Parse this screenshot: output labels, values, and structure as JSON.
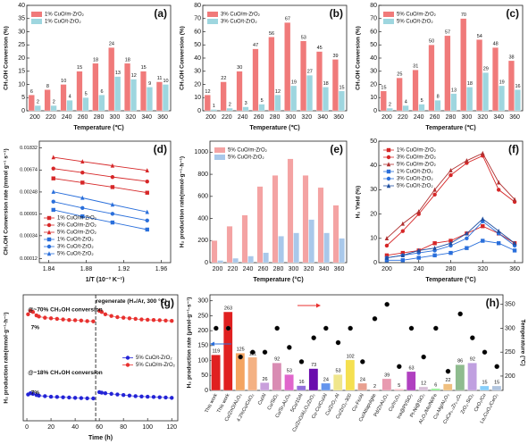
{
  "chart_data": [
    {
      "type": "bar",
      "panel": "(a)",
      "xlabel": "Temperature (℃)",
      "ylabel": "CH₃OH Conversion (%)",
      "categories": [
        200,
        220,
        240,
        260,
        280,
        300,
        320,
        340,
        360
      ],
      "ylim": [
        0,
        40
      ],
      "yticks": [
        0,
        5,
        10,
        15,
        20,
        25,
        30,
        35,
        40
      ],
      "legend": "upper left",
      "data_labels": true,
      "series": [
        {
          "name": "1% CuO/m-ZrO₂",
          "color": "#f07a7a",
          "values": [
            6,
            8,
            10,
            15,
            18,
            24,
            18,
            15,
            11
          ]
        },
        {
          "name": "1% CuO/t-ZrO₂",
          "color": "#9ed6df",
          "values": [
            2,
            2,
            4,
            5,
            6,
            13,
            12,
            9,
            10
          ]
        }
      ]
    },
    {
      "type": "bar",
      "panel": "(b)",
      "xlabel": "Temperature (℃)",
      "ylabel": "CH₃OH Conversion (%)",
      "categories": [
        200,
        220,
        240,
        260,
        280,
        300,
        320,
        340,
        360
      ],
      "ylim": [
        0,
        80
      ],
      "yticks": [
        0,
        10,
        20,
        30,
        40,
        50,
        60,
        70,
        80
      ],
      "legend": "upper left",
      "data_labels": true,
      "series": [
        {
          "name": "3% CuO/m-ZrO₂",
          "color": "#f07a7a",
          "values": [
            12,
            22,
            30,
            47,
            56,
            67,
            53,
            45,
            39
          ]
        },
        {
          "name": "3% CuO/t-ZrO₂",
          "color": "#9ed6df",
          "values": [
            1,
            2,
            3,
            5,
            12,
            19,
            27,
            18,
            15
          ]
        }
      ]
    },
    {
      "type": "bar",
      "panel": "(c)",
      "xlabel": "Temperature (℃)",
      "ylabel": "CH₃OH Conversion (%)",
      "categories": [
        200,
        220,
        240,
        260,
        280,
        300,
        320,
        340,
        360
      ],
      "ylim": [
        0,
        80
      ],
      "yticks": [
        0,
        10,
        20,
        30,
        40,
        50,
        60,
        70,
        80
      ],
      "legend": "upper left",
      "data_labels": true,
      "series": [
        {
          "name": "5% CuO/m-ZrO₂",
          "color": "#f07a7a",
          "values": [
            15,
            25,
            31,
            50,
            57,
            70,
            54,
            48,
            38
          ]
        },
        {
          "name": "5% CuO/t-ZrO₂",
          "color": "#9ed6df",
          "values": [
            2,
            4,
            5,
            8,
            13,
            18,
            29,
            19,
            16
          ]
        }
      ]
    },
    {
      "type": "line",
      "panel": "(d)",
      "xlabel": "1/T (10⁻³ K⁻¹)",
      "ylabel": "CH₃OH Conversion rate (mmol g⁻¹ s⁻¹)",
      "log_y": true,
      "ylim": [
        0.0001,
        0.025
      ],
      "yticks": [
        0.00012,
        0.00034,
        0.00091,
        0.00248,
        0.00674,
        0.01832
      ],
      "xlim": [
        1.83,
        1.97
      ],
      "xticks": [
        1.84,
        1.88,
        1.92,
        1.96
      ],
      "x": [
        1.845,
        1.876,
        1.908,
        1.945
      ],
      "legend": "lower left",
      "series": [
        {
          "name": "1% CuO/m-ZrO₂",
          "color": "#d62728",
          "marker": "square",
          "values": [
            0.0046,
            0.0038,
            0.0031,
            0.0024
          ]
        },
        {
          "name": "3% CuO/m-ZrO₂",
          "color": "#d62728",
          "marker": "circle",
          "values": [
            0.0072,
            0.006,
            0.0049,
            0.004
          ]
        },
        {
          "name": "5% CuO/m-ZrO₂",
          "color": "#d62728",
          "marker": "triangle",
          "values": [
            0.012,
            0.0099,
            0.0082,
            0.0066
          ]
        },
        {
          "name": "1% CuO/t-ZrO₂",
          "color": "#2a6fdb",
          "marker": "square",
          "values": [
            0.0011,
            0.00082,
            0.00062,
            0.00045
          ]
        },
        {
          "name": "3% CuO/t-ZrO₂",
          "color": "#2a6fdb",
          "marker": "circle",
          "values": [
            0.0016,
            0.0012,
            0.00092,
            0.00068
          ]
        },
        {
          "name": "5% CuO/t-ZrO₂",
          "color": "#2a6fdb",
          "marker": "triangle",
          "values": [
            0.0025,
            0.0019,
            0.0014,
            0.001
          ]
        }
      ]
    },
    {
      "type": "bar",
      "panel": "(e)",
      "xlabel": "Temperature (°C)",
      "ylabel": "H₂ production rate(mmol·g⁻¹·h⁻¹)",
      "categories": [
        200,
        220,
        240,
        260,
        280,
        300,
        320,
        340,
        360
      ],
      "ylim": [
        0,
        1100
      ],
      "yticks": [
        0,
        200,
        400,
        600,
        800,
        1000
      ],
      "legend": "upper left",
      "series": [
        {
          "name": "5% CuO/m-ZrO₂",
          "color": "#f4a3a3",
          "values": [
            200,
            330,
            430,
            690,
            790,
            940,
            790,
            680,
            520
          ]
        },
        {
          "name": "5% CuO/t-ZrO₂",
          "color": "#a9c8ea",
          "values": [
            20,
            40,
            60,
            90,
            240,
            270,
            390,
            270,
            220
          ]
        }
      ]
    },
    {
      "type": "line",
      "panel": "(f)",
      "xlabel": "Temperature (°C)",
      "ylabel": "H₂ Yield (%)",
      "xlim": [
        190,
        370
      ],
      "xticks": [
        200,
        240,
        280,
        320,
        360
      ],
      "ylim": [
        0,
        50
      ],
      "yticks": [
        0,
        10,
        20,
        30,
        40,
        50
      ],
      "x": [
        200,
        220,
        240,
        260,
        280,
        300,
        320,
        340,
        360
      ],
      "legend": "upper left",
      "series": [
        {
          "name": "1% CuO/m-ZrO₂",
          "color": "#d62728",
          "marker": "square",
          "values": [
            3,
            4,
            5,
            8,
            9,
            12,
            15,
            12,
            8
          ]
        },
        {
          "name": "3% CuO/m-ZrO₂",
          "color": "#d62728",
          "marker": "circle",
          "values": [
            7,
            13,
            20,
            28,
            36,
            41,
            44,
            30,
            25
          ]
        },
        {
          "name": "5% CuO/m-ZrO₂",
          "color": "#b03030",
          "marker": "triangle",
          "values": [
            10,
            16,
            21,
            30,
            38,
            42,
            45,
            33,
            26
          ]
        },
        {
          "name": "1% CuO/t-ZrO₂",
          "color": "#2a6fdb",
          "marker": "square",
          "values": [
            1,
            1,
            2,
            3,
            4,
            6,
            9,
            8,
            5
          ]
        },
        {
          "name": "3% CuO/t-ZrO₂",
          "color": "#2a6fdb",
          "marker": "circle",
          "values": [
            2,
            3,
            4,
            5,
            7,
            10,
            17,
            12,
            7
          ]
        },
        {
          "name": "5% CuO/t-ZrO₂",
          "color": "#1f4fa0",
          "marker": "triangle",
          "values": [
            2,
            3,
            5,
            6,
            8,
            12,
            18,
            13,
            8
          ]
        }
      ]
    },
    {
      "type": "line",
      "panel": "(g)",
      "xlabel": "Time (h)",
      "ylabel": "H₂ production rate(mmol·g⁻¹·h⁻¹)",
      "xlim": [
        -3,
        125
      ],
      "xticks": [
        0,
        20,
        40,
        60,
        80,
        100,
        120
      ],
      "ylim": [
        0,
        1100
      ],
      "legend": "center right",
      "vlines": [
        57
      ],
      "annotations": [
        "@~70% CH₃OH conversion",
        "@~18% CH₃OH conversion",
        "regenerate (H₂/Ar, 300 °C)",
        "7%",
        "7%"
      ],
      "x": [
        1,
        3,
        5,
        8,
        10,
        15,
        20,
        25,
        30,
        35,
        40,
        45,
        50,
        55,
        58,
        60,
        62,
        65,
        70,
        75,
        80,
        85,
        90,
        95,
        100,
        105,
        110,
        115,
        120
      ],
      "series": [
        {
          "name": "5% CuO/t-ZrO₂",
          "color": "#2323d6",
          "marker": "circle",
          "values": [
            230,
            240,
            235,
            225,
            220,
            215,
            210,
            208,
            205,
            203,
            200,
            198,
            196,
            195,
            null,
            250,
            245,
            240,
            235,
            230,
            225,
            220,
            215,
            212,
            210,
            208,
            205,
            203,
            200
          ]
        },
        {
          "name": "5% CuO/m-ZrO₂",
          "color": "#e8312f",
          "marker": "circle",
          "values": [
            930,
            960,
            950,
            920,
            910,
            900,
            895,
            890,
            885,
            880,
            878,
            875,
            870,
            868,
            null,
            960,
            950,
            930,
            915,
            905,
            900,
            895,
            890,
            885,
            882,
            880,
            878,
            875,
            872
          ]
        }
      ]
    },
    {
      "type": "bar",
      "panel": "(h)",
      "ylabel": "H₂ production rate (μmol·g⁻¹·s⁻¹)",
      "y2label": "Temperature (°C)",
      "categories": [
        "This work",
        "This work",
        "Cu/ZnO/Al₂O₃",
        "4.2%Cu/CeO₂",
        "Cu/Al",
        "Cu/SiO₂",
        "Cu/Sr₃Al₂O₆",
        "5Cu/10Al",
        "Cu/ZnO/Al₂O₃/ZrO₂",
        "Cu-Co/Cu/Al",
        "Cu/ZrO₂-Al",
        "Cu/ZrO₂-300",
        "Cu-Fe/Al",
        "Cu/Attapulgite",
        "Pd/ZnAl₂O₄",
        "Cu/In₂O₃",
        "Ina@Pt/SiO₂",
        "Pt-Ni@SiO₂",
        "Al₂O₃/Mo/Ni/Fe",
        "Cu-Mg/Al₂O₃",
        "CuCe₀.₂Zr₀.₈Oₓ",
        "ZrO₂-SiO₂",
        "CeO₂/Cu",
        "La₂CuO₄/CeO₂"
      ],
      "ylim": [
        0,
        320
      ],
      "yticks": [
        0,
        50,
        100,
        150,
        200,
        250,
        300
      ],
      "y2lim": [
        170,
        370
      ],
      "y2ticks": [
        200,
        250,
        300,
        350
      ],
      "data_labels": true,
      "series": [
        {
          "colors": [
            "#e02020",
            "#e02020",
            "#f4a460",
            "#f4b183",
            "#c9a0dc",
            "#d98cb3",
            "#e066cc",
            "#9370db",
            "#6a0dad",
            "#6495ed",
            "#f0e68c",
            "#f5e050",
            "#e8a090",
            "#f08080",
            "#e89ab0",
            "#ffc0cb",
            "#b040c0",
            "#d8bfd8",
            "#90ee90",
            "#f0c080",
            "#8fbc8f",
            "#c0a0e0",
            "#87cefa",
            "#b0c4de"
          ],
          "values": [
            119,
            263,
            125,
            111,
            26,
            92,
            53,
            16,
            73,
            24,
            53,
            102,
            24,
            2,
            39,
            5,
            63,
            12,
            6,
            22,
            86,
            92,
            15,
            15
          ]
        },
        {
          "axis": "y2",
          "values": [
            300,
            300,
            240,
            250,
            250,
            300,
            260,
            230,
            280,
            300,
            270,
            300,
            230,
            320,
            350,
            220,
            300,
            240,
            300,
            210,
            330,
            280,
            250,
            220
          ]
        }
      ]
    }
  ]
}
